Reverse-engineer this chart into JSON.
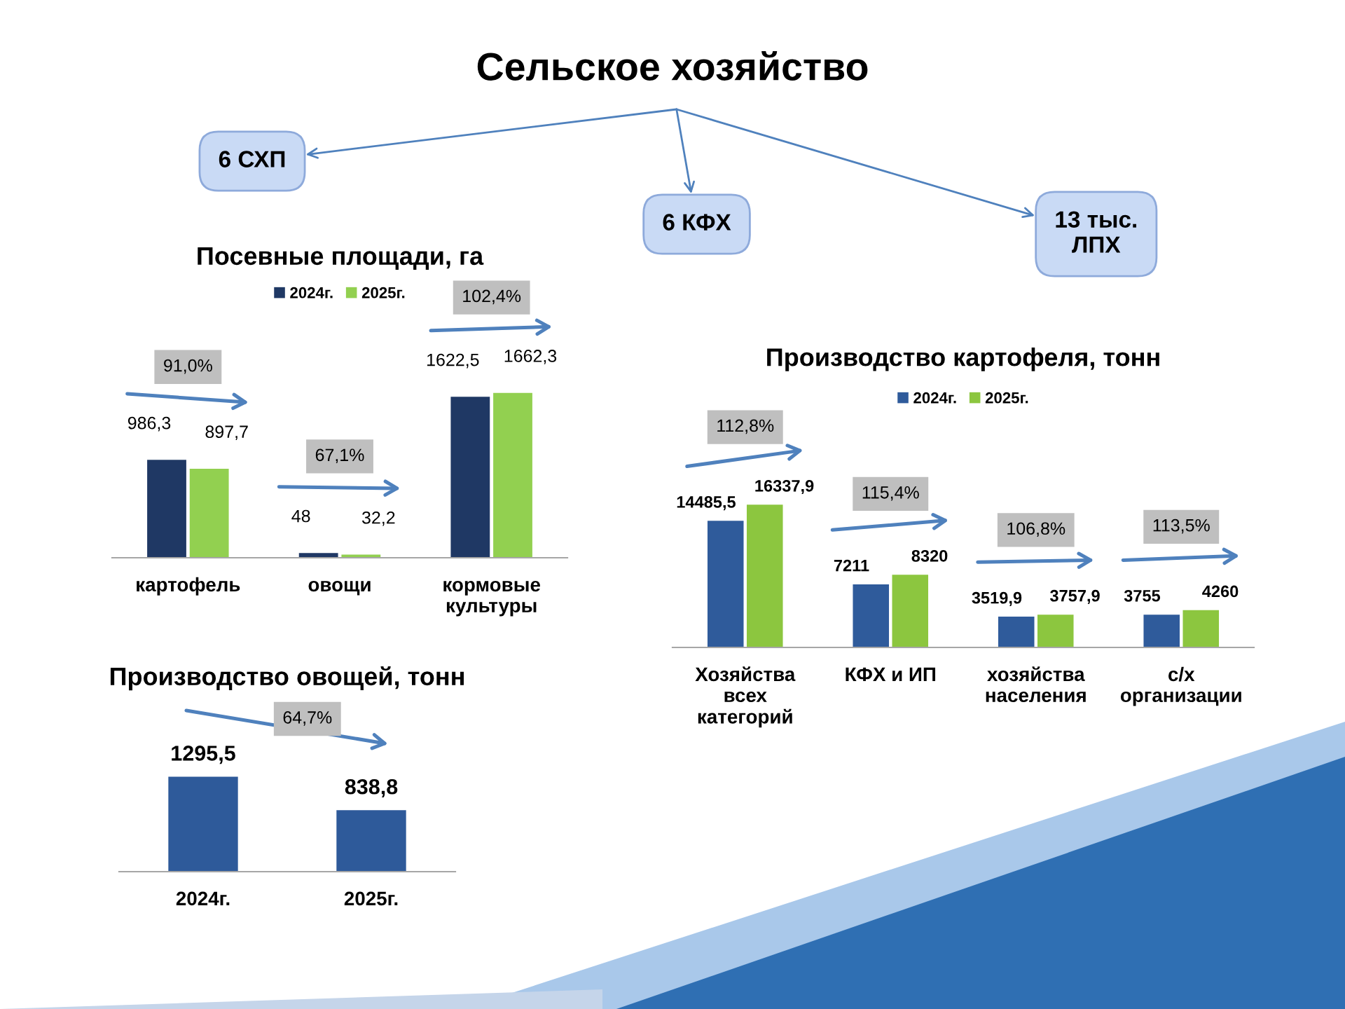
{
  "chart_data": [
    {
      "type": "other",
      "title": "Сельское хозяйство",
      "annotations": [
        "6 СХП",
        "6 КФХ",
        "13 тыс.\nЛПХ"
      ]
    },
    {
      "type": "bar",
      "title": "Посевные площади, га",
      "categories": [
        "картофель",
        "овощи",
        "кормовые\nкультуры"
      ],
      "series": [
        {
          "name": "2024г.",
          "color": "#1f3864",
          "values": [
            986.3,
            48,
            1622.5
          ],
          "value_labels": [
            "986,3",
            "48",
            "1622,5"
          ]
        },
        {
          "name": "2025г.",
          "color": "#92d050",
          "values": [
            897.7,
            32.2,
            1662.3
          ],
          "value_labels": [
            "897,7",
            "32,2",
            "1662,3"
          ]
        }
      ],
      "legend": "top",
      "annotations": [
        "91,0%",
        "67,1%",
        "102,4%"
      ]
    },
    {
      "type": "bar",
      "title": "Производство картофеля, тонн",
      "categories": [
        "Хозяйства\nвсех\nкатегорий",
        "КФХ и ИП",
        "хозяйства\nнаселения",
        "с/х\nорганизации"
      ],
      "series": [
        {
          "name": "2024г.",
          "color": "#2f5b9b",
          "values": [
            14485.5,
            7211,
            3519.9,
            3755
          ],
          "value_labels": [
            "14485,5",
            "7211",
            "3519,9",
            "3755"
          ]
        },
        {
          "name": "2025г.",
          "color": "#8cc63f",
          "values": [
            16337.9,
            8320,
            3757.9,
            4260
          ],
          "value_labels": [
            "16337,9",
            "8320",
            "3757,9",
            "4260"
          ]
        }
      ],
      "legend": "top",
      "annotations": [
        "112,8%",
        "115,4%",
        "106,8%",
        "113,5%"
      ]
    },
    {
      "type": "bar",
      "title": "Производство овощей, тонн",
      "categories": [
        "2024г.",
        "2025г."
      ],
      "values": [
        1295.5,
        838.8
      ],
      "value_labels": [
        "1295,5",
        "838,8"
      ],
      "color": "#2e5a9a",
      "annotations": [
        "64,7%"
      ]
    }
  ]
}
